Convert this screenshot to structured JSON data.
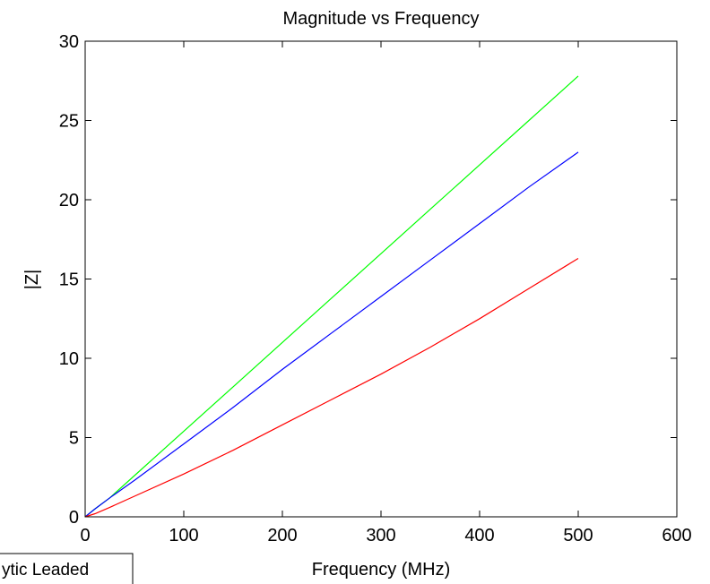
{
  "chart_data": {
    "type": "line",
    "title": "Magnitude vs Frequency",
    "xlabel": "Frequency (MHz)",
    "ylabel": "|Z|",
    "xlim": [
      0,
      600
    ],
    "ylim": [
      0,
      30
    ],
    "xticks": [
      0,
      100,
      200,
      300,
      400,
      500,
      600
    ],
    "yticks": [
      0,
      5,
      10,
      15,
      20,
      25,
      30
    ],
    "grid": false,
    "legend_position": "bottom-left",
    "legend_entries": [
      "ytic Leaded"
    ],
    "series": [
      {
        "color": "#00ff00",
        "x": [
          0,
          10,
          25,
          50,
          100,
          150,
          200,
          250,
          300,
          350,
          400,
          450,
          500
        ],
        "y": [
          0,
          0.5,
          1.2,
          2.6,
          5.4,
          8.2,
          11.0,
          13.8,
          16.6,
          19.4,
          22.2,
          25.0,
          27.8
        ]
      },
      {
        "color": "#0000ff",
        "x": [
          0,
          10,
          25,
          50,
          100,
          150,
          200,
          250,
          300,
          350,
          400,
          450,
          500
        ],
        "y": [
          0,
          0.5,
          1.2,
          2.3,
          4.6,
          6.9,
          9.3,
          11.6,
          13.9,
          16.2,
          18.5,
          20.8,
          23.0
        ]
      },
      {
        "color": "#ff0000",
        "x": [
          0,
          10,
          25,
          50,
          100,
          150,
          200,
          250,
          300,
          350,
          400,
          450,
          500
        ],
        "y": [
          0,
          0.2,
          0.6,
          1.3,
          2.7,
          4.2,
          5.8,
          7.4,
          9.0,
          10.7,
          12.5,
          14.4,
          16.3
        ]
      }
    ]
  }
}
